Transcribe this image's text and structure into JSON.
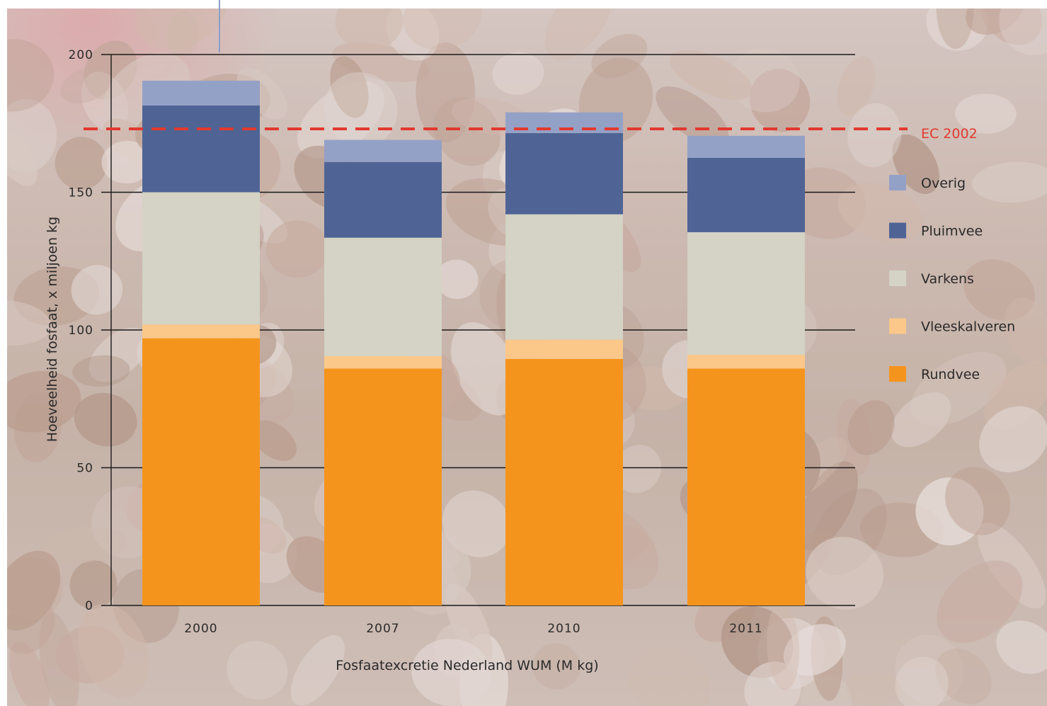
{
  "chart_data": {
    "type": "bar",
    "stacked": true,
    "title": "",
    "xlabel": "Fosfaatexcretie Nederland WUM (M kg)",
    "ylabel": "Hoeveelheid fosfaat, x miljoen kg",
    "ylim": [
      0,
      200
    ],
    "yticks": [
      0,
      50,
      100,
      150,
      200
    ],
    "grid": true,
    "categories": [
      "2000",
      "2007",
      "2010",
      "2011"
    ],
    "series": [
      {
        "name": "Rundvee",
        "color": "#f5941d",
        "values": [
          97,
          86,
          89.5,
          86
        ]
      },
      {
        "name": "Vleeskalveren",
        "color": "#fbc88a",
        "values": [
          5,
          4.5,
          7,
          5
        ]
      },
      {
        "name": "Varkens",
        "color": "#d4d3c5",
        "values": [
          48,
          43,
          45.5,
          44.5
        ]
      },
      {
        "name": "Pluimvee",
        "color": "#4f6495",
        "values": [
          31.5,
          27.5,
          29.5,
          27
        ]
      },
      {
        "name": "Overig",
        "color": "#94a1c6",
        "values": [
          9,
          8,
          7.5,
          8
        ]
      }
    ],
    "reference_line": {
      "label": "EC 2002",
      "value": 173,
      "color": "#e2392f",
      "style": "dashed"
    },
    "legend": {
      "placement": "right",
      "order": [
        "Overig",
        "Pluimvee",
        "Varkens",
        "Vleeskalveren",
        "Rundvee"
      ]
    }
  }
}
